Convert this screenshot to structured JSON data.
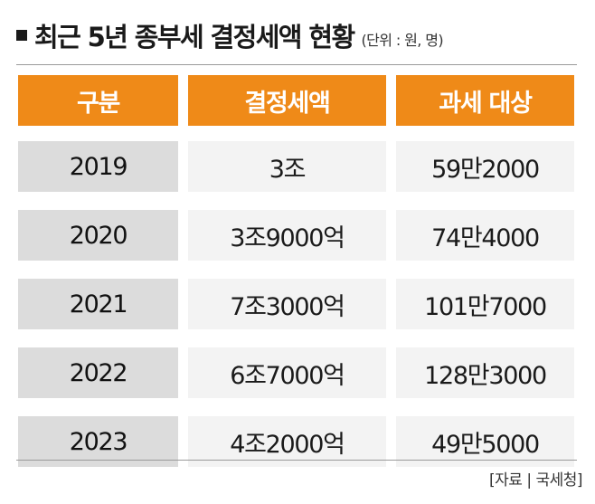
{
  "title": {
    "main": "최근 5년 종부세 결정세액 현황",
    "unit": "(단위 : 원, 명)"
  },
  "table": {
    "headers": [
      "구분",
      "결정세액",
      "과세 대상"
    ],
    "rows": [
      [
        "2019",
        "3조",
        "59만2000"
      ],
      [
        "2020",
        "3조9000억",
        "74만4000"
      ],
      [
        "2021",
        "7조3000억",
        "101만7000"
      ],
      [
        "2022",
        "6조7000억",
        "128만3000"
      ],
      [
        "2023",
        "4조2000억",
        "49만5000"
      ]
    ]
  },
  "source": "[자료 | 국세청]",
  "colors": {
    "header_bg": "#ef8a18",
    "header_text": "#ffffff",
    "year_cell_bg": "#dcdcdc",
    "value_cell_bg": "#f3f3f3"
  }
}
